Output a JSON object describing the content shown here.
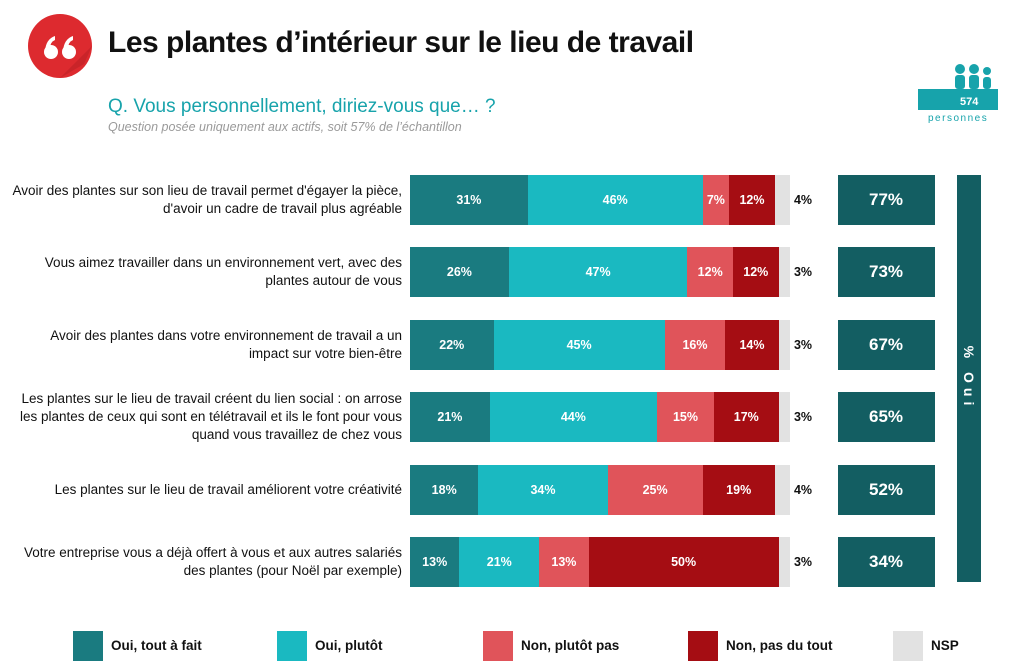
{
  "title": "Les plantes d’intérieur sur le lieu de travail",
  "question": "Q. Vous personnellement, diriez-vous que… ?",
  "note": "Question posée uniquement aux actifs, soit 57% de l’échantillon",
  "sample": {
    "count": "574",
    "label": "personnes"
  },
  "chart_data": {
    "type": "bar",
    "orientation": "horizontal",
    "stacked": true,
    "categories": [
      "Avoir des plantes sur son lieu de travail permet d'égayer la pièce, d'avoir un cadre de travail plus agréable",
      "Vous aimez travailler dans un environnement vert, avec des plantes autour de vous",
      "Avoir des plantes dans votre environnement de travail a un impact sur votre bien-être",
      "Les plantes sur le lieu de travail créent du lien social : on arrose les plantes de ceux qui sont en télétravail et ils le font pour vous quand vous travaillez de chez vous",
      "Les plantes sur le lieu de travail améliorent votre créativité",
      "Votre entreprise vous a déjà offert à vous et aux autres salariés des plantes (pour Noël par exemple)"
    ],
    "xlim": [
      0,
      100
    ],
    "series": [
      {
        "name": "Oui, tout à fait",
        "color": "#1a7b80",
        "values": [
          31,
          26,
          22,
          21,
          18,
          13
        ],
        "value_labels": [
          "31%",
          "26%",
          "22%",
          "21%",
          "18%",
          "13%"
        ]
      },
      {
        "name": "Oui, plutôt",
        "color": "#1ab9c1",
        "values": [
          46,
          47,
          45,
          44,
          34,
          21
        ],
        "value_labels": [
          "46%",
          "47%",
          "45%",
          "44%",
          "34%",
          "21%"
        ]
      },
      {
        "name": "Non, plutôt pas",
        "color": "#e0545a",
        "values": [
          7,
          12,
          16,
          15,
          25,
          13
        ],
        "value_labels": [
          "7%",
          "12%",
          "16%",
          "15%",
          "25%",
          "13%"
        ]
      },
      {
        "name": "Non, pas du tout",
        "color": "#a50d13",
        "values": [
          12,
          12,
          14,
          17,
          19,
          50
        ],
        "value_labels": [
          "12%",
          "12%",
          "14%",
          "17%",
          "19%",
          "50%"
        ]
      },
      {
        "name": "NSP",
        "color": "#e2e2e2",
        "values": [
          4,
          3,
          3,
          3,
          4,
          3
        ],
        "value_labels": [
          "4%",
          "3%",
          "3%",
          "3%",
          "4%",
          "3%"
        ]
      }
    ],
    "totals": {
      "name": "% Oui",
      "color": "#135e62",
      "values": [
        77,
        73,
        67,
        65,
        52,
        34
      ],
      "value_labels": [
        "77%",
        "73%",
        "67%",
        "65%",
        "52%",
        "34%"
      ]
    }
  }
}
